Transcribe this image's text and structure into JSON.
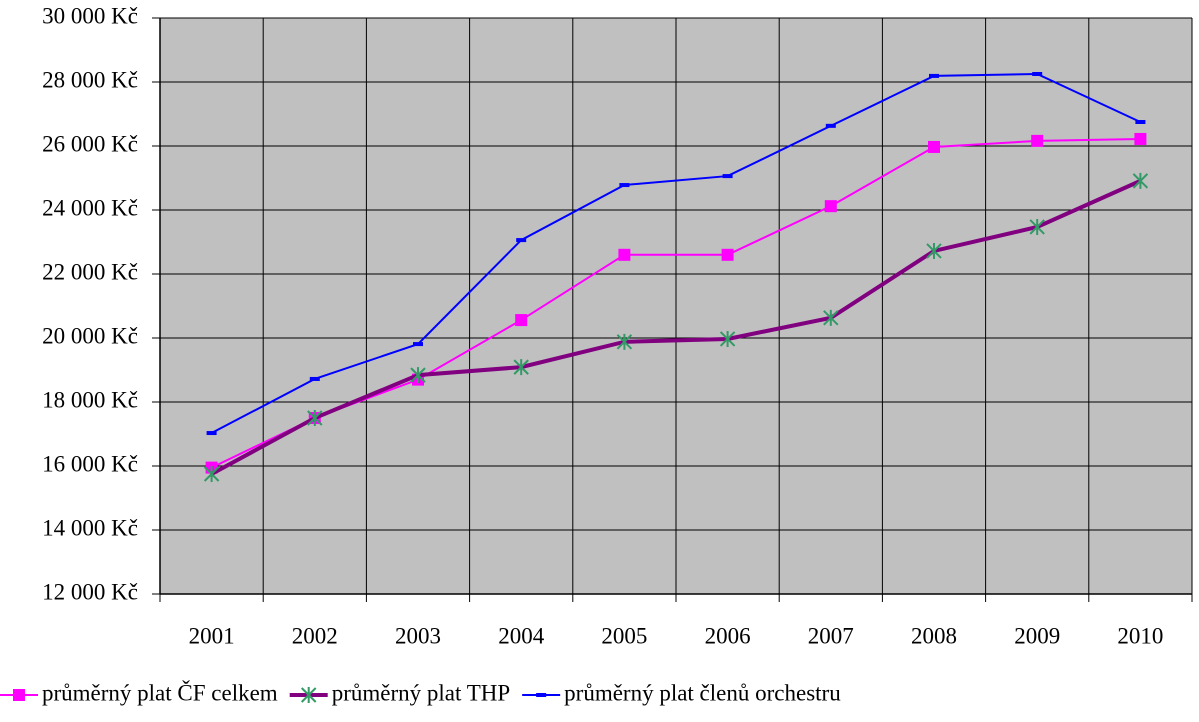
{
  "chart_data": {
    "type": "line",
    "categories": [
      "2001",
      "2002",
      "2003",
      "2004",
      "2005",
      "2006",
      "2007",
      "2008",
      "2009",
      "2010"
    ],
    "series": [
      {
        "name": "průměrný plat ČF celkem",
        "color": "#ff00ff",
        "marker": "square",
        "line_width": 2,
        "values": [
          15950,
          17500,
          18700,
          20560,
          22600,
          22600,
          24120,
          25970,
          26160,
          26220
        ]
      },
      {
        "name": "průměrný plat THP",
        "color": "#800080",
        "marker_color": "#339966",
        "marker": "asterisk",
        "line_width": 4,
        "values": [
          15750,
          17500,
          18840,
          19090,
          19880,
          19970,
          20630,
          22720,
          23470,
          24910
        ]
      },
      {
        "name": "průměrný plat členů orchestru",
        "color": "#0000ff",
        "marker": "dash",
        "line_width": 2,
        "values": [
          17030,
          18720,
          19810,
          23060,
          24780,
          25060,
          26630,
          28190,
          28250,
          26750
        ]
      }
    ],
    "ylim": [
      12000,
      30000
    ],
    "yticks": [
      {
        "value": 12000,
        "label": "12 000 Kč"
      },
      {
        "value": 14000,
        "label": "14 000 Kč"
      },
      {
        "value": 16000,
        "label": "16 000 Kč"
      },
      {
        "value": 18000,
        "label": "18 000 Kč"
      },
      {
        "value": 20000,
        "label": "20 000 Kč"
      },
      {
        "value": 22000,
        "label": "22 000 Kč"
      },
      {
        "value": 24000,
        "label": "24 000 Kč"
      },
      {
        "value": 26000,
        "label": "26 000 Kč"
      },
      {
        "value": 28000,
        "label": "28 000 Kč"
      },
      {
        "value": 30000,
        "label": "30 000 Kč"
      }
    ],
    "grid": true,
    "plot_background": "#c0c0c0",
    "legend": "bottom"
  }
}
